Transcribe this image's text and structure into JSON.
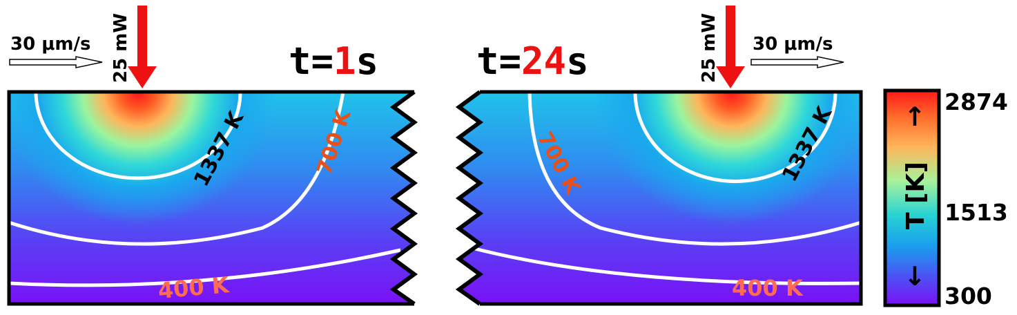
{
  "panels": {
    "left": {
      "time_prefix": "t=",
      "time_value": "1",
      "time_unit": "s",
      "speed_label": "30 μm/s",
      "power_label": "25 mW",
      "contour_1337": "1337 K",
      "contour_700": "700 K",
      "contour_400": "400 K"
    },
    "right": {
      "time_prefix": "t=",
      "time_value": "24",
      "time_unit": "s",
      "speed_label": "30 μm/s",
      "power_label": "25 mW",
      "contour_1337": "1337 K",
      "contour_700": "700 K",
      "contour_400": "400 K"
    }
  },
  "colorbar": {
    "label": "T [K]",
    "arrow_up": "↑",
    "arrow_down": "↓",
    "tick_max": "2874",
    "tick_mid": "1513",
    "tick_min": "300"
  },
  "colors": {
    "laser_arrow": "#ee1111",
    "time_value": "#ee1111",
    "contour_line": "#ffffff",
    "label_700": "#e8501a",
    "label_400": "#ff6a55"
  }
}
